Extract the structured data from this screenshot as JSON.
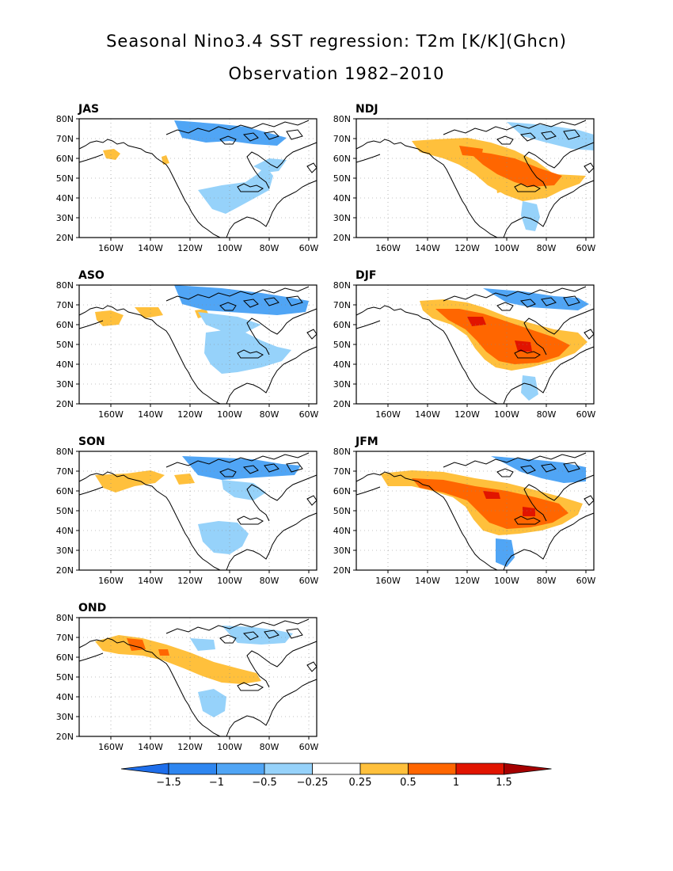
{
  "title": "Seasonal Nino3.4 SST regression: T2m [K/K](Ghcn)",
  "subtitle": "Observation 1982–2010",
  "colors": {
    "neg4": "#1e6eeb",
    "neg3": "#2e86f0",
    "neg2": "#50a5f5",
    "neg1": "#96d2fa",
    "zero": "#ffffff",
    "pos1": "#ffc03c",
    "pos2": "#ff6600",
    "pos3": "#e11400",
    "pos4": "#a50000",
    "land": "#000000"
  },
  "lat_ticks": [
    "80N",
    "70N",
    "60N",
    "50N",
    "40N",
    "30N",
    "20N"
  ],
  "lon_ticks": [
    "160W",
    "140W",
    "120W",
    "100W",
    "80W",
    "60W"
  ],
  "panels": [
    {
      "label": "JAS"
    },
    {
      "label": "NDJ"
    },
    {
      "label": "ASO"
    },
    {
      "label": "DJF"
    },
    {
      "label": "SON"
    },
    {
      "label": "JFM"
    },
    {
      "label": "OND"
    }
  ],
  "colorbar": {
    "labels": [
      "−1.5",
      "−1",
      "−0.5",
      "−0.25",
      "0.25",
      "0.5",
      "1",
      "1.5"
    ]
  }
}
